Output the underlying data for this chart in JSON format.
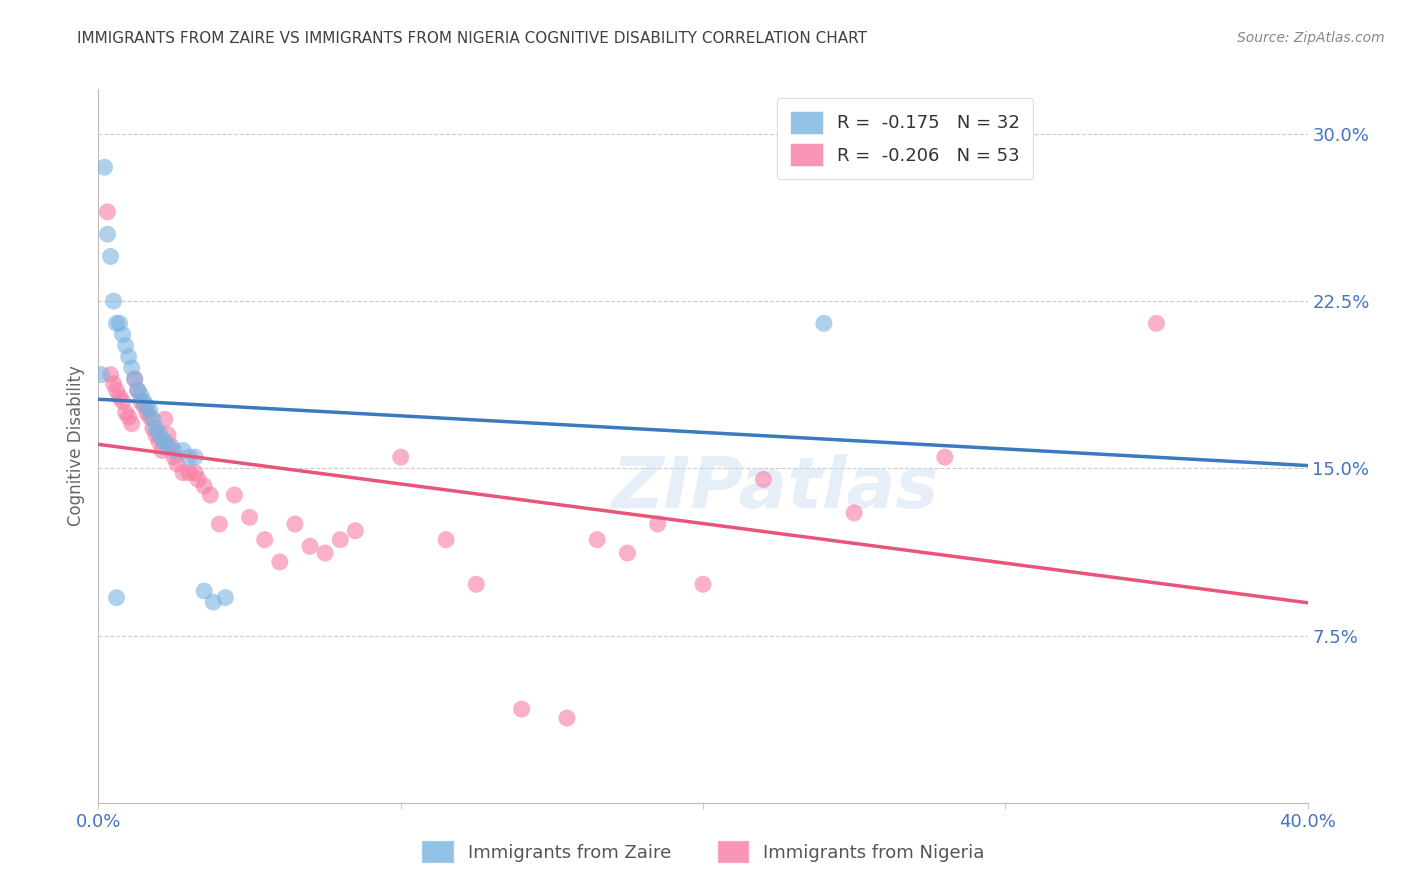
{
  "title": "IMMIGRANTS FROM ZAIRE VS IMMIGRANTS FROM NIGERIA COGNITIVE DISABILITY CORRELATION CHART",
  "source": "Source: ZipAtlas.com",
  "ylabel": "Cognitive Disability",
  "ylabel_right_ticks": [
    "30.0%",
    "22.5%",
    "15.0%",
    "7.5%"
  ],
  "ylabel_right_vals": [
    0.3,
    0.225,
    0.15,
    0.075
  ],
  "xmin": 0.0,
  "xmax": 0.4,
  "ymin": 0.0,
  "ymax": 0.32,
  "zaire_color": "#7ab3e0",
  "nigeria_color": "#f87ca4",
  "zaire_line_color": "#3a7abf",
  "nigeria_line_color": "#e8547a",
  "zaire_R": -0.175,
  "zaire_N": 32,
  "nigeria_R": -0.206,
  "nigeria_N": 53,
  "zaire_x": [
    0.001,
    0.002,
    0.003,
    0.004,
    0.005,
    0.006,
    0.007,
    0.008,
    0.009,
    0.01,
    0.011,
    0.012,
    0.013,
    0.014,
    0.015,
    0.016,
    0.017,
    0.018,
    0.019,
    0.02,
    0.021,
    0.022,
    0.023,
    0.025,
    0.028,
    0.03,
    0.032,
    0.035,
    0.038,
    0.042,
    0.24,
    0.006
  ],
  "zaire_y": [
    0.192,
    0.285,
    0.255,
    0.245,
    0.225,
    0.215,
    0.215,
    0.21,
    0.205,
    0.2,
    0.195,
    0.19,
    0.185,
    0.183,
    0.18,
    0.178,
    0.176,
    0.172,
    0.168,
    0.166,
    0.163,
    0.162,
    0.16,
    0.158,
    0.158,
    0.155,
    0.155,
    0.095,
    0.09,
    0.092,
    0.215,
    0.092
  ],
  "nigeria_x": [
    0.003,
    0.004,
    0.005,
    0.006,
    0.007,
    0.008,
    0.009,
    0.01,
    0.011,
    0.012,
    0.013,
    0.014,
    0.015,
    0.016,
    0.017,
    0.018,
    0.019,
    0.02,
    0.021,
    0.022,
    0.023,
    0.024,
    0.025,
    0.026,
    0.028,
    0.03,
    0.032,
    0.033,
    0.035,
    0.037,
    0.04,
    0.045,
    0.05,
    0.055,
    0.06,
    0.065,
    0.07,
    0.075,
    0.08,
    0.085,
    0.1,
    0.115,
    0.125,
    0.14,
    0.155,
    0.165,
    0.175,
    0.185,
    0.2,
    0.22,
    0.25,
    0.28,
    0.35
  ],
  "nigeria_y": [
    0.265,
    0.192,
    0.188,
    0.185,
    0.182,
    0.18,
    0.175,
    0.173,
    0.17,
    0.19,
    0.185,
    0.18,
    0.178,
    0.175,
    0.173,
    0.168,
    0.165,
    0.162,
    0.158,
    0.172,
    0.165,
    0.16,
    0.155,
    0.152,
    0.148,
    0.148,
    0.148,
    0.145,
    0.142,
    0.138,
    0.125,
    0.138,
    0.128,
    0.118,
    0.108,
    0.125,
    0.115,
    0.112,
    0.118,
    0.122,
    0.155,
    0.118,
    0.098,
    0.042,
    0.038,
    0.118,
    0.112,
    0.125,
    0.098,
    0.145,
    0.13,
    0.155,
    0.215
  ],
  "watermark": "ZIPatlas",
  "background_color": "#ffffff",
  "grid_color": "#cccccc",
  "tick_label_color": "#4472c4",
  "title_color": "#404040",
  "source_color": "#888888"
}
